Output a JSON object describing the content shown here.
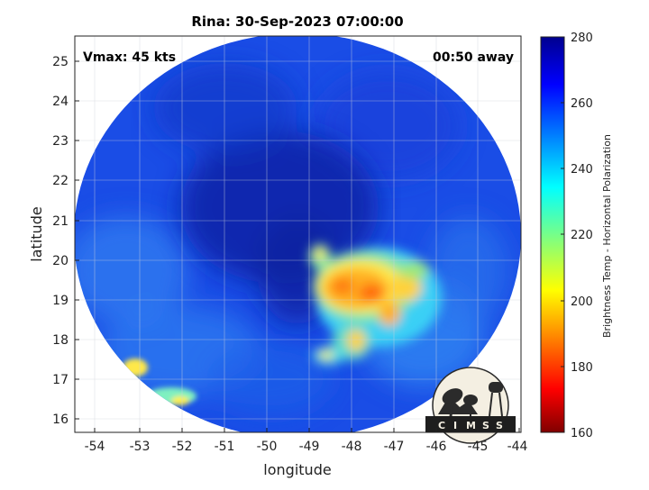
{
  "title": "Rina: 30-Sep-2023 07:00:00",
  "vmax_label": "Vmax: 45 kts",
  "time_away_label": "00:50 away",
  "x_axis": {
    "label": "longitude",
    "range": [
      -54.5,
      -44
    ],
    "ticks": [
      "-54",
      "-53",
      "-52",
      "-51",
      "-50",
      "-49",
      "-48",
      "-47",
      "-46",
      "-45",
      "-44"
    ],
    "tick_values": [
      -54,
      -53,
      -52,
      -51,
      -50,
      -49,
      -48,
      -47,
      -46,
      -45,
      -44
    ]
  },
  "y_axis": {
    "label": "latitude",
    "range": [
      15.7,
      25.6
    ],
    "ticks": [
      "16",
      "17",
      "18",
      "19",
      "20",
      "21",
      "22",
      "23",
      "24",
      "25"
    ],
    "tick_values": [
      16,
      17,
      18,
      19,
      20,
      21,
      22,
      23,
      24,
      25
    ]
  },
  "colorbar": {
    "label": "Brightness Temp - Horizontal Polarization",
    "range": [
      160,
      280
    ],
    "ticks": [
      "280",
      "260",
      "240",
      "220",
      "200",
      "180",
      "160"
    ],
    "tick_values": [
      280,
      260,
      240,
      220,
      200,
      180,
      160
    ],
    "colormap": "jet"
  },
  "logo": {
    "text": "CIMSS",
    "letters": [
      "C",
      "I",
      "M",
      "S",
      "S"
    ]
  },
  "colors": {
    "background_scene": "#1a4de6",
    "dark_core": "#0a1f9e",
    "warm_convection": "#ff9a10",
    "outside_swath": "#ffffff"
  }
}
